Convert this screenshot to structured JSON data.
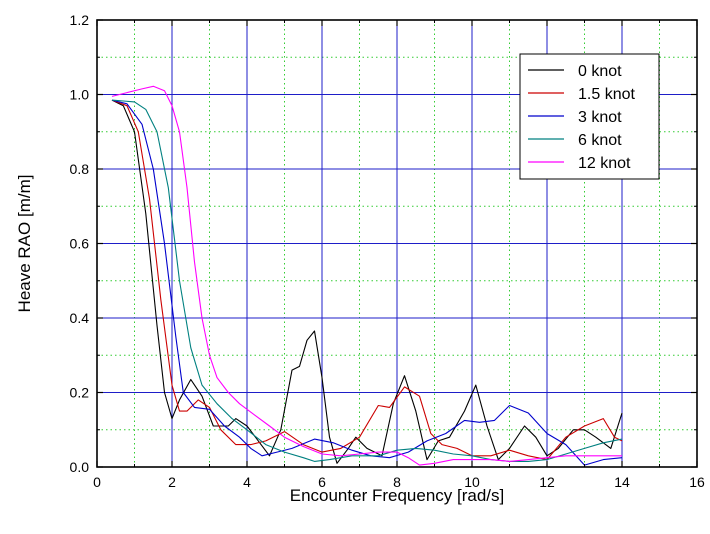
{
  "chart_data": {
    "type": "line",
    "title": "",
    "xlabel": "Encounter Frequency [rad/s]",
    "ylabel": "Heave RAO [m/m]",
    "xlim": [
      0,
      16
    ],
    "ylim": [
      0,
      1.2
    ],
    "xticks": [
      0,
      2,
      4,
      6,
      8,
      10,
      12,
      14,
      16
    ],
    "yticks": [
      0.0,
      0.2,
      0.4,
      0.6,
      0.8,
      1.0,
      1.2
    ],
    "xtick_labels": [
      "0",
      "2",
      "4",
      "6",
      "8",
      "10",
      "12",
      "14",
      "16"
    ],
    "ytick_labels": [
      "0.0",
      "0.2",
      "0.4",
      "0.6",
      "0.8",
      "1.0",
      "1.2"
    ],
    "grid": true,
    "legend_position": "top-right",
    "colors": {
      "major_grid": "#1e1ec8",
      "minor_grid": "#33cc33",
      "axis": "#000000"
    },
    "series": [
      {
        "name": "0 knot",
        "color": "#000000",
        "points": [
          [
            0.4,
            0.985
          ],
          [
            0.7,
            0.97
          ],
          [
            1.0,
            0.9
          ],
          [
            1.3,
            0.68
          ],
          [
            1.6,
            0.38
          ],
          [
            1.8,
            0.2
          ],
          [
            2.0,
            0.13
          ],
          [
            2.2,
            0.18
          ],
          [
            2.5,
            0.235
          ],
          [
            2.8,
            0.19
          ],
          [
            3.1,
            0.11
          ],
          [
            3.5,
            0.11
          ],
          [
            3.7,
            0.13
          ],
          [
            4.0,
            0.11
          ],
          [
            4.3,
            0.07
          ],
          [
            4.6,
            0.03
          ],
          [
            4.9,
            0.1
          ],
          [
            5.2,
            0.26
          ],
          [
            5.4,
            0.27
          ],
          [
            5.6,
            0.34
          ],
          [
            5.8,
            0.365
          ],
          [
            6.0,
            0.24
          ],
          [
            6.2,
            0.08
          ],
          [
            6.4,
            0.01
          ],
          [
            6.7,
            0.05
          ],
          [
            6.9,
            0.08
          ],
          [
            7.2,
            0.05
          ],
          [
            7.6,
            0.03
          ],
          [
            7.9,
            0.17
          ],
          [
            8.2,
            0.245
          ],
          [
            8.5,
            0.15
          ],
          [
            8.8,
            0.02
          ],
          [
            9.1,
            0.07
          ],
          [
            9.4,
            0.08
          ],
          [
            9.8,
            0.15
          ],
          [
            10.1,
            0.22
          ],
          [
            10.4,
            0.11
          ],
          [
            10.7,
            0.02
          ],
          [
            11.0,
            0.05
          ],
          [
            11.4,
            0.11
          ],
          [
            11.7,
            0.08
          ],
          [
            12.0,
            0.03
          ],
          [
            12.3,
            0.05
          ],
          [
            12.7,
            0.1
          ],
          [
            13.0,
            0.1
          ],
          [
            13.3,
            0.08
          ],
          [
            13.7,
            0.05
          ],
          [
            14.0,
            0.145
          ]
        ]
      },
      {
        "name": "1.5 knot",
        "color": "#cc0000",
        "points": [
          [
            0.4,
            0.985
          ],
          [
            0.8,
            0.97
          ],
          [
            1.1,
            0.9
          ],
          [
            1.4,
            0.72
          ],
          [
            1.7,
            0.45
          ],
          [
            2.0,
            0.22
          ],
          [
            2.2,
            0.15
          ],
          [
            2.4,
            0.15
          ],
          [
            2.7,
            0.18
          ],
          [
            3.0,
            0.16
          ],
          [
            3.3,
            0.1
          ],
          [
            3.7,
            0.06
          ],
          [
            4.1,
            0.06
          ],
          [
            4.5,
            0.07
          ],
          [
            5.0,
            0.095
          ],
          [
            5.5,
            0.06
          ],
          [
            6.0,
            0.04
          ],
          [
            6.5,
            0.05
          ],
          [
            7.0,
            0.08
          ],
          [
            7.5,
            0.165
          ],
          [
            7.8,
            0.16
          ],
          [
            8.2,
            0.215
          ],
          [
            8.6,
            0.19
          ],
          [
            8.9,
            0.09
          ],
          [
            9.2,
            0.06
          ],
          [
            9.6,
            0.05
          ],
          [
            10.0,
            0.03
          ],
          [
            10.5,
            0.03
          ],
          [
            11.0,
            0.045
          ],
          [
            11.5,
            0.03
          ],
          [
            12.0,
            0.02
          ],
          [
            12.5,
            0.08
          ],
          [
            13.0,
            0.11
          ],
          [
            13.5,
            0.13
          ],
          [
            13.8,
            0.08
          ],
          [
            14.0,
            0.07
          ]
        ]
      },
      {
        "name": "3 knot",
        "color": "#0000cc",
        "points": [
          [
            0.4,
            0.985
          ],
          [
            0.8,
            0.975
          ],
          [
            1.2,
            0.92
          ],
          [
            1.5,
            0.8
          ],
          [
            1.8,
            0.6
          ],
          [
            2.1,
            0.35
          ],
          [
            2.3,
            0.2
          ],
          [
            2.6,
            0.16
          ],
          [
            3.0,
            0.155
          ],
          [
            3.4,
            0.11
          ],
          [
            3.8,
            0.08
          ],
          [
            4.1,
            0.05
          ],
          [
            4.4,
            0.03
          ],
          [
            4.8,
            0.04
          ],
          [
            5.2,
            0.05
          ],
          [
            5.8,
            0.075
          ],
          [
            6.3,
            0.065
          ],
          [
            6.8,
            0.045
          ],
          [
            7.3,
            0.03
          ],
          [
            7.8,
            0.025
          ],
          [
            8.3,
            0.04
          ],
          [
            8.8,
            0.07
          ],
          [
            9.3,
            0.09
          ],
          [
            9.8,
            0.125
          ],
          [
            10.2,
            0.12
          ],
          [
            10.6,
            0.125
          ],
          [
            11.0,
            0.165
          ],
          [
            11.5,
            0.145
          ],
          [
            12.0,
            0.09
          ],
          [
            12.5,
            0.06
          ],
          [
            13.0,
            0.005
          ],
          [
            13.5,
            0.02
          ],
          [
            14.0,
            0.025
          ]
        ]
      },
      {
        "name": "6 knot",
        "color": "#008080",
        "points": [
          [
            0.4,
            0.985
          ],
          [
            1.0,
            0.98
          ],
          [
            1.3,
            0.96
          ],
          [
            1.6,
            0.9
          ],
          [
            1.9,
            0.75
          ],
          [
            2.2,
            0.5
          ],
          [
            2.5,
            0.32
          ],
          [
            2.8,
            0.22
          ],
          [
            3.2,
            0.17
          ],
          [
            3.6,
            0.13
          ],
          [
            4.0,
            0.1
          ],
          [
            4.5,
            0.06
          ],
          [
            5.0,
            0.04
          ],
          [
            5.5,
            0.025
          ],
          [
            5.8,
            0.015
          ],
          [
            6.2,
            0.02
          ],
          [
            6.8,
            0.03
          ],
          [
            7.5,
            0.03
          ],
          [
            8.0,
            0.045
          ],
          [
            8.5,
            0.05
          ],
          [
            9.0,
            0.045
          ],
          [
            9.5,
            0.035
          ],
          [
            10.0,
            0.03
          ],
          [
            10.5,
            0.02
          ],
          [
            11.0,
            0.015
          ],
          [
            11.5,
            0.015
          ],
          [
            12.0,
            0.02
          ],
          [
            12.5,
            0.035
          ],
          [
            13.0,
            0.05
          ],
          [
            13.5,
            0.065
          ],
          [
            14.0,
            0.075
          ]
        ]
      },
      {
        "name": "12 knot",
        "color": "#ff00ff",
        "points": [
          [
            0.4,
            0.995
          ],
          [
            0.8,
            1.005
          ],
          [
            1.2,
            1.015
          ],
          [
            1.5,
            1.022
          ],
          [
            1.8,
            1.01
          ],
          [
            2.0,
            0.97
          ],
          [
            2.2,
            0.9
          ],
          [
            2.4,
            0.75
          ],
          [
            2.6,
            0.55
          ],
          [
            2.8,
            0.4
          ],
          [
            3.0,
            0.3
          ],
          [
            3.2,
            0.24
          ],
          [
            3.5,
            0.2
          ],
          [
            3.8,
            0.17
          ],
          [
            4.2,
            0.14
          ],
          [
            4.6,
            0.11
          ],
          [
            5.0,
            0.08
          ],
          [
            5.5,
            0.055
          ],
          [
            6.0,
            0.035
          ],
          [
            6.5,
            0.03
          ],
          [
            7.0,
            0.035
          ],
          [
            7.5,
            0.04
          ],
          [
            8.0,
            0.04
          ],
          [
            8.3,
            0.025
          ],
          [
            8.6,
            0.005
          ],
          [
            9.0,
            0.01
          ],
          [
            9.5,
            0.02
          ],
          [
            10.0,
            0.02
          ],
          [
            10.5,
            0.02
          ],
          [
            11.0,
            0.015
          ],
          [
            11.5,
            0.02
          ],
          [
            12.0,
            0.025
          ],
          [
            12.5,
            0.03
          ],
          [
            13.0,
            0.03
          ],
          [
            13.5,
            0.03
          ],
          [
            14.0,
            0.03
          ]
        ]
      }
    ]
  }
}
